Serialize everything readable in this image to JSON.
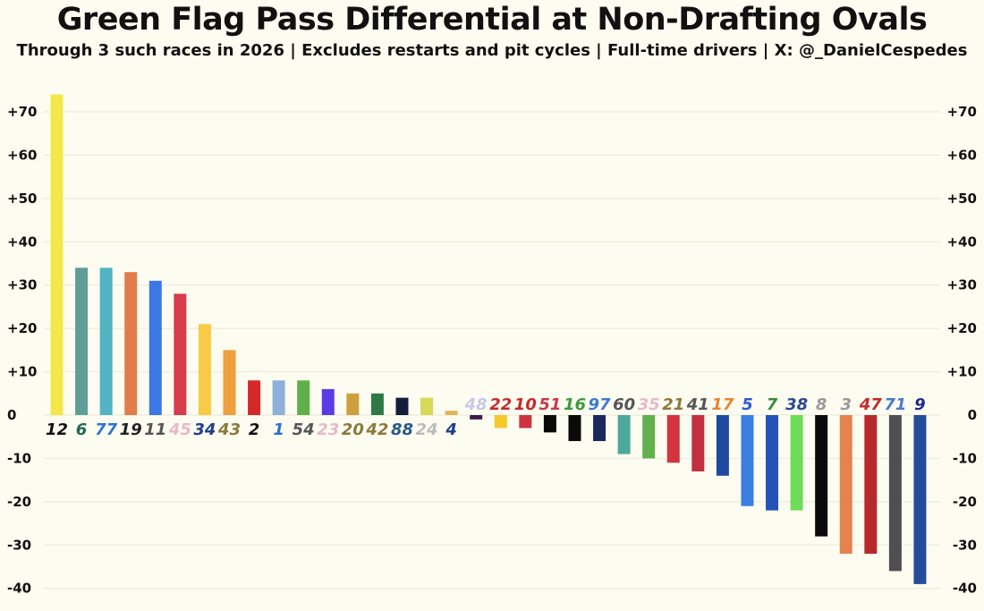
{
  "header": {
    "title": "Green Flag Pass Differential at Non-Drafting Ovals",
    "subtitle": "Through 3 such races in 2026 | Excludes restarts and pit cycles | Full-time drivers | X: @_DanielCespedes"
  },
  "chart_data": {
    "type": "bar",
    "title": "Green Flag Pass Differential at Non-Drafting Ovals",
    "subtitle": "Through 3 such races in 2026 | Excludes restarts and pit cycles | Full-time drivers | X: @_DanielCespedes",
    "xlabel": "",
    "ylabel": "",
    "ylim": [
      -42,
      75
    ],
    "yticks": [
      -40,
      -30,
      -20,
      -10,
      0,
      10,
      20,
      30,
      40,
      50,
      60,
      70
    ],
    "ytick_labels": [
      "-40",
      "-30",
      "-20",
      "-10",
      "0",
      "+10",
      "+20",
      "+30",
      "+40",
      "+50",
      "+60",
      "+70"
    ],
    "grid": true,
    "categories": [
      "12",
      "6",
      "77",
      "19",
      "11",
      "45",
      "34",
      "43",
      "2",
      "1",
      "54",
      "23",
      "20",
      "42",
      "88",
      "24",
      "4",
      "48",
      "22",
      "10",
      "51",
      "16",
      "97",
      "60",
      "35",
      "21",
      "41",
      "17",
      "5",
      "7",
      "38",
      "8",
      "3",
      "47",
      "71",
      "9"
    ],
    "values": [
      74,
      34,
      34,
      33,
      31,
      28,
      21,
      15,
      8,
      8,
      8,
      6,
      5,
      5,
      4,
      4,
      1,
      -1,
      -3,
      -3,
      -4,
      -6,
      -6,
      -9,
      -10,
      -11,
      -13,
      -14,
      -21,
      -22,
      -22,
      -28,
      -32,
      -32,
      -36,
      -39
    ],
    "bar_colors": [
      "#f2e84a",
      "#5e9e96",
      "#52b4c2",
      "#e07d4c",
      "#3b78e6",
      "#d83b4c",
      "#f7cb46",
      "#ef9f3d",
      "#d62828",
      "#8eb0db",
      "#5fb04a",
      "#5b3be8",
      "#cf9f3e",
      "#2f7a44",
      "#161d3c",
      "#d8d85a",
      "#e2b45a",
      "#3c1c48",
      "#f7c82a",
      "#cf3340",
      "#0a0a0a",
      "#0a0a0a",
      "#1a2a5e",
      "#4ba89a",
      "#62b04e",
      "#d3343e",
      "#c23040",
      "#1e4ba0",
      "#3a7ee2",
      "#2452b8",
      "#6edc58",
      "#0a0a0a",
      "#e4834e",
      "#b82a2a",
      "#4f4f4f",
      "#244c98"
    ],
    "label_colors": [
      "#111111",
      "#1b6a4c",
      "#2a76d2",
      "#222222",
      "#555555",
      "#e8b8c8",
      "#1d3e8a",
      "#8a7a3a",
      "#111111",
      "#2a70d2",
      "#555555",
      "#e8b8c8",
      "#8a7a3a",
      "#8a7a3a",
      "#2a5a8a",
      "#bbbbbb",
      "#1d3e8a",
      "#c8c8e8",
      "#c82828",
      "#c82828",
      "#c83848",
      "#3a9a3a",
      "#3a7ad2",
      "#555555",
      "#e8b8c8",
      "#8a7a3a",
      "#555555",
      "#e8842a",
      "#2a5ad2",
      "#3a8a3a",
      "#2a4a8a",
      "#999999",
      "#999999",
      "#c82828",
      "#4a7ac8",
      "#1d2a8a"
    ]
  }
}
